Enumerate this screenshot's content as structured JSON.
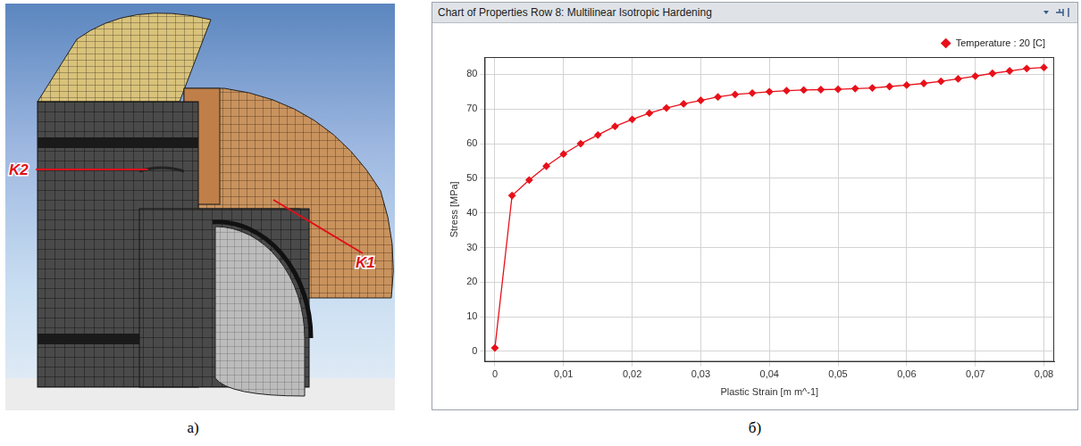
{
  "chart_data": {
    "type": "line",
    "title": "Chart of Properties Row 8: Multilinear Isotropic Hardening",
    "x_label": "Plastic Strain [m m^-1]",
    "y_label": "Stress [MPa]",
    "x": [
      0,
      0.0025,
      0.005,
      0.0075,
      0.01,
      0.0125,
      0.015,
      0.0175,
      0.02,
      0.0225,
      0.025,
      0.0275,
      0.03,
      0.0325,
      0.035,
      0.0375,
      0.04,
      0.0425,
      0.045,
      0.0475,
      0.05,
      0.0525,
      0.055,
      0.0575,
      0.06,
      0.0625,
      0.065,
      0.0675,
      0.07,
      0.0725,
      0.075,
      0.0775,
      0.08
    ],
    "series": [
      {
        "name": "Temperature : 20 [C]",
        "color": "#e8101a",
        "marker": "diamond",
        "line_style": "solid",
        "values": [
          1,
          45,
          49.5,
          53.5,
          57,
          60,
          62.5,
          65,
          67,
          68.8,
          70.3,
          71.5,
          72.5,
          73.5,
          74.2,
          74.6,
          75,
          75.3,
          75.5,
          75.6,
          75.7,
          75.9,
          76.1,
          76.5,
          76.9,
          77.4,
          78,
          78.7,
          79.5,
          80.3,
          81,
          81.7,
          82
        ]
      }
    ],
    "xlim": [
      -0.0015,
      0.0815
    ],
    "ylim": [
      -3,
      85
    ],
    "xticks": [
      0,
      {
        "value": 0.01,
        "label": "0,01"
      },
      {
        "value": 0.02,
        "label": "0,02"
      },
      {
        "value": 0.03,
        "label": "0,03"
      },
      {
        "value": 0.04,
        "label": "0,04"
      },
      {
        "value": 0.05,
        "label": "0,05"
      },
      {
        "value": 0.06,
        "label": "0,06"
      },
      {
        "value": 0.07,
        "label": "0,07"
      },
      {
        "value": 0.08,
        "label": "0,08"
      }
    ],
    "yticks": [
      0,
      10,
      20,
      30,
      40,
      50,
      60,
      70,
      80
    ],
    "grid": true,
    "legend": "upper right"
  },
  "figure": {
    "captions": [
      "а)",
      "б)"
    ],
    "diagram_labels": [
      "K2",
      "K1"
    ]
  }
}
